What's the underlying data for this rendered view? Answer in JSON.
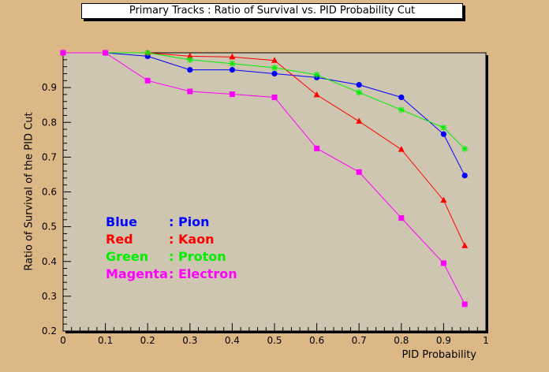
{
  "chart_data": {
    "type": "line",
    "title": "Primary Tracks : Ratio of Survival vs. PID Probability Cut",
    "xlabel": "PID Probability",
    "ylabel": "Ratio of Survival of the PID Cut",
    "xlim": [
      0,
      1
    ],
    "ylim": [
      0.2,
      1.0
    ],
    "x_ticks": [
      0,
      0.1,
      0.2,
      0.3,
      0.4,
      0.5,
      0.6,
      0.7,
      0.8,
      0.9,
      1
    ],
    "x_tick_labels": [
      "0",
      "0.1",
      "0.2",
      "0.3",
      "0.4",
      "0.5",
      "0.6",
      "0.7",
      "0.8",
      "0.9",
      "1"
    ],
    "y_ticks": [
      0.2,
      0.3,
      0.4,
      0.5,
      0.6,
      0.7,
      0.8,
      0.9
    ],
    "y_tick_labels": [
      "0.2",
      "0.3",
      "0.4",
      "0.5",
      "0.6",
      "0.7",
      "0.8",
      "0.9"
    ],
    "grid": false,
    "background": "#cfc6b1",
    "x": [
      0,
      0.1,
      0.2,
      0.3,
      0.4,
      0.5,
      0.6,
      0.7,
      0.8,
      0.9,
      0.95
    ],
    "series": [
      {
        "name": "Pion",
        "color": "#0000ff",
        "marker": "circle",
        "values": [
          1.0,
          1.0,
          0.99,
          0.951,
          0.951,
          0.94,
          0.929,
          0.908,
          0.872,
          0.766,
          0.647
        ]
      },
      {
        "name": "Kaon",
        "color": "#ff0000",
        "marker": "triangle",
        "values": [
          1.0,
          1.0,
          1.0,
          0.99,
          0.988,
          0.978,
          0.879,
          0.803,
          0.722,
          0.576,
          0.445
        ]
      },
      {
        "name": "Proton",
        "color": "#00ee00",
        "marker": "star",
        "values": [
          1.0,
          1.0,
          1.0,
          0.98,
          0.969,
          0.957,
          0.937,
          0.886,
          0.836,
          0.785,
          0.724
        ]
      },
      {
        "name": "Electron",
        "color": "#ff00ff",
        "marker": "square",
        "values": [
          1.0,
          1.0,
          0.92,
          0.889,
          0.881,
          0.872,
          0.725,
          0.657,
          0.525,
          0.395,
          0.277
        ]
      }
    ],
    "legend": {
      "placement": "bottom-left",
      "entries": [
        {
          "color_word": "Blue",
          "sep": ": Pion",
          "color": "#0000ff"
        },
        {
          "color_word": "Red",
          "sep": ": Kaon",
          "color": "#ff0000"
        },
        {
          "color_word": "Green",
          "sep": ": Proton",
          "color": "#00ee00"
        },
        {
          "color_word": "Magenta",
          "sep": ": Electron",
          "color": "#ff00ff"
        }
      ]
    }
  }
}
